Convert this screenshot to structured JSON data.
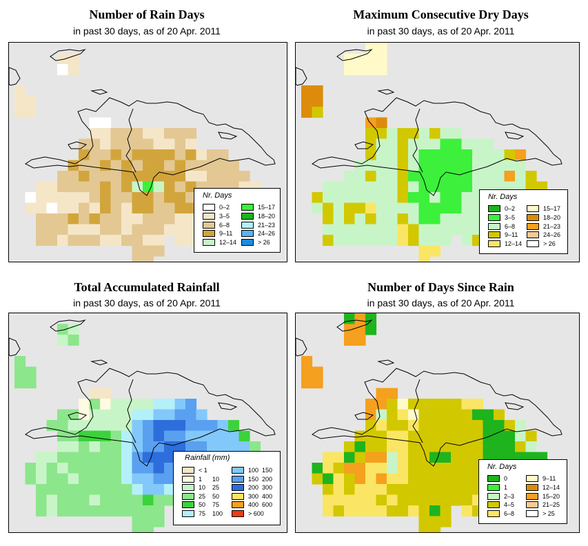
{
  "colors": {
    "sea": "#e6e6e6",
    "coast": "#000000"
  },
  "panels": [
    {
      "id": "rain-days",
      "title": "Number of Rain Days",
      "subtitle": "in past 30 days, as of  20 Apr. 2011",
      "legend": {
        "title": "Nr. Days",
        "cols": 2,
        "items": [
          {
            "label": "0–2",
            "color": "#ffffff"
          },
          {
            "label": "3–5",
            "color": "#f5e6c8"
          },
          {
            "label": "6–8",
            "color": "#e3c894"
          },
          {
            "label": "9–11",
            "color": "#d2a53c"
          },
          {
            "label": "12–14",
            "color": "#c8f5c8"
          },
          {
            "label": "15–17",
            "color": "#3cf03c"
          },
          {
            "label": "18–20",
            "color": "#1eb41e"
          },
          {
            "label": "21–23",
            "color": "#b4f0fa"
          },
          {
            "label": "24–26",
            "color": "#5ab4f0"
          },
          {
            "label": "> 26",
            "color": "#1e8cdc"
          }
        ]
      },
      "grid": [
        "..........................",
        "....BB....................",
        "....AB....................",
        "..........................",
        "B.........................",
        "BB........................",
        "BB........................",
        ".......AA.................",
        ".......BBCCCBBCCC.........",
        "......CCBCCCCBBCB.........",
        "......DCCDCDDDDCDBCC......",
        ".....DCCDCDCDDCDCCCCC.....",
        "....CCDCCCDDDDDDBBCCCC....",
        "..BBCCCCDCDEFEDCDCCCCBB...",
        ".ABBBBBCDCCDDCDDCBBCCCCB..",
        ".BBABBCBDCBDDCCDDBBBBBBB..",
        "..CCCDCDCCBBCCCBBBBBBBBB..",
        "..CCCBBBCCBCCCBBBBBBBBC...",
        "..CCBCCCBBCCBB.BBBB.......",
        "...........CCC............",
        "...........CC............."
      ]
    },
    {
      "id": "max-dry-days",
      "title": "Maximum Consecutive Dry Days",
      "subtitle": "in past 30 days, as of  20 Apr. 2011",
      "legend": {
        "title": "Nr. Days",
        "cols": 2,
        "items": [
          {
            "label": "0–2",
            "color": "#1eb41e"
          },
          {
            "label": "3–5",
            "color": "#3cf03c"
          },
          {
            "label": "6–8",
            "color": "#c8f5c8"
          },
          {
            "label": "9–11",
            "color": "#d2c800"
          },
          {
            "label": "12–14",
            "color": "#fae664"
          },
          {
            "label": "15–17",
            "color": "#fffac8"
          },
          {
            "label": "18–20",
            "color": "#dc8c0a"
          },
          {
            "label": "21–23",
            "color": "#f5a01e"
          },
          {
            "label": "24–26",
            "color": "#fac896"
          },
          {
            "label": "> 26",
            "color": "#ffffff"
          }
        ]
      },
      "grid": [
        "......FF..................",
        "....FFFF..................",
        "....FFFF..................",
        "..........................",
        "GG........................",
        "GG........................",
        "GD........................",
        "......HG..................",
        "......DDCDDCDCC...........",
        "......DCCDCCCBBCCC........",
        "......DCCDCBBBBBCCCDH.....",
        ".....CCCCDCBBBBBCCCCC.....",
        "....CCDCCDBBBBBBCCCHCD....",
        "..CCCCCCCDCBBBBBCCCCCDD...",
        ".DCCCCCCCDBBCBBCCCCCCDDD..",
        ".CDCDDECCCCBBBBCCCCCCCDD..",
        "..DCDCDCCDCBBCCCCCCCCCDD..",
        "..CCCCCCCEDCCCCCCCCDCD....",
        "..DCCCCCCEDCCC.CDCCD......",
        "...........EE.............",
        "...........E.............."
      ]
    },
    {
      "id": "total-rainfall",
      "title": "Total Accumulated Rainfall",
      "subtitle": "in past 30 days, as of  20 Apr. 2011",
      "legend": {
        "title": "Rainfall (mm)",
        "cols": 2,
        "items": [
          {
            "label": "< 1",
            "label2": "",
            "color": "#f5e6c8"
          },
          {
            "label": "1",
            "label2": "10",
            "color": "#fffae0"
          },
          {
            "label": "10",
            "label2": "25",
            "color": "#c8f5c8"
          },
          {
            "label": "25",
            "label2": "50",
            "color": "#8ce68c"
          },
          {
            "label": "50",
            "label2": "75",
            "color": "#3cd23c"
          },
          {
            "label": "75",
            "label2": "100",
            "color": "#b4f0fa"
          },
          {
            "label": "100",
            "label2": "150",
            "color": "#82c8fa"
          },
          {
            "label": "150",
            "label2": "200",
            "color": "#5aa0f0"
          },
          {
            "label": "200",
            "label2": "300",
            "color": "#2d6edc"
          },
          {
            "label": "300",
            "label2": "400",
            "color": "#fae664"
          },
          {
            "label": "400",
            "label2": "600",
            "color": "#f5a01e"
          },
          {
            "label": "> 600",
            "label2": "",
            "color": "#f03c14"
          }
        ]
      },
      "grid": [
        "..........................",
        "....DC....................",
        "....CD....................",
        "..........................",
        "D.........................",
        "DD........................",
        "DD........................",
        ".......AA.................",
        "......BDBCCCCFFGH.........",
        "....DDBCCCCFFGGHHG........",
        "...DDCCCCCCGHIIIHHHGE.....",
        "....DDEEEDFGHIHHGGGGGE....",
        "....CCDCDDFGHHIIHHGGGGD...",
        "..CCDDDDDDFHIIIHHGGGHGGD..",
        ".DCDCDDDDDFHHIHHHGGHHGDC..",
        ".DCDDCDDDDFGGHHGGGGGGDCC..",
        "..DDDDDDDDDFGGFDDDDDDDDC..",
        "..DCDDDCDDDDEDDDDDDDDC....",
        "..DCDDDDDDDDDD.DDDD.......",
        "...........DDD............",
        "...........DD............."
      ]
    },
    {
      "id": "days-since-rain",
      "title": "Number of Days Since Rain",
      "subtitle": "in past 30 days, as of  20 Apr. 2011",
      "legend": {
        "title": "Nr. Days",
        "cols": 2,
        "items": [
          {
            "label": "0",
            "color": "#1eb41e"
          },
          {
            "label": "1",
            "color": "#3cf03c"
          },
          {
            "label": "2–3",
            "color": "#c8f5c8"
          },
          {
            "label": "4–5",
            "color": "#d2c800"
          },
          {
            "label": "6–8",
            "color": "#fae664"
          },
          {
            "label": "9–11",
            "color": "#fffac8"
          },
          {
            "label": "12–14",
            "color": "#dc8c0a"
          },
          {
            "label": "15–20",
            "color": "#f5a01e"
          },
          {
            "label": "21–25",
            "color": "#fac896"
          },
          {
            "label": "> 25",
            "color": "#ffffff"
          }
        ]
      },
      "grid": [
        "....AHA...................",
        "....HHA...................",
        "....HH....................",
        "..........................",
        "H.........................",
        "HH........................",
        "HH........................",
        ".......HH.................",
        "......HHDFDDDDDEE.........",
        "......HCDEFDDDDDAAD.......",
        "......DEDDEDDDDDDAADC.....",
        ".....DDDEEDDDDDDDAAACD....",
        "....DADDEEDDDDDDDAAADC....",
        "..EEADHHCEDDAADDDAAAAAA...",
        ".AEDHHEECEDDDDDDDDDCCCHH..",
        ".DAEDHEHEEDDDDDDDDDDCCHH..",
        "..DEDEEEDDDDDDDDDDDDDDAE..",
        "..EEEEEDEDDDDDDDEEDDEE....",
        "..EDEEEEDDEDAD.EDDE.......",
        "...........DDD............",
        "...........DD............."
      ]
    }
  ]
}
